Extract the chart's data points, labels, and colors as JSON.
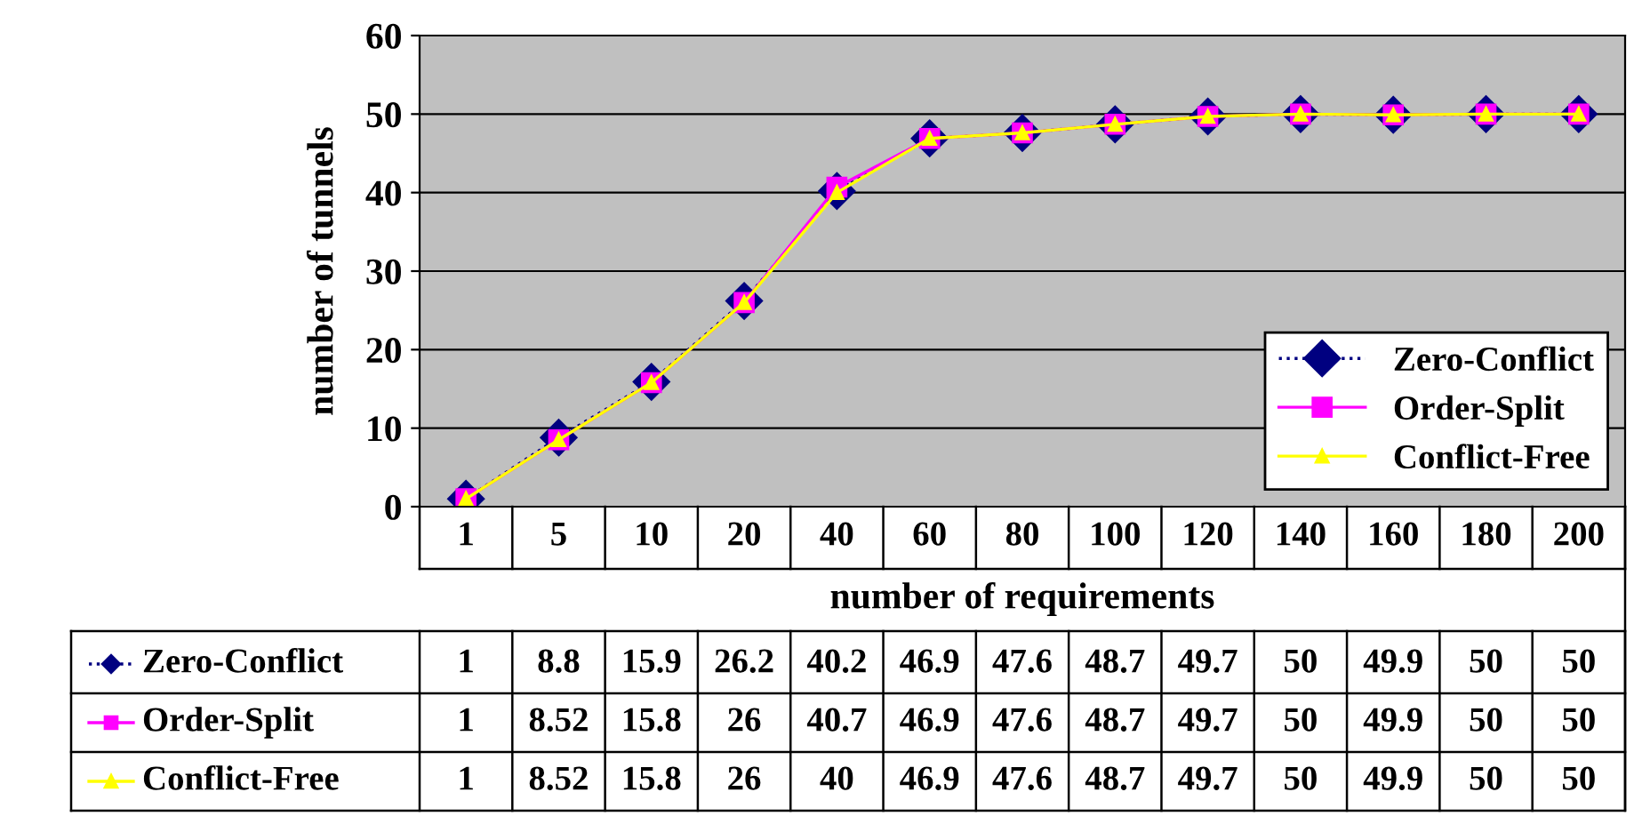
{
  "chart_data": {
    "type": "line",
    "xlabel": "number of requirements",
    "ylabel": "number of tunnels",
    "categories": [
      "1",
      "5",
      "10",
      "20",
      "40",
      "60",
      "80",
      "100",
      "120",
      "140",
      "160",
      "180",
      "200"
    ],
    "series": [
      {
        "name": "Zero-Conflict",
        "color": "#000080",
        "marker": "diamond",
        "line_style": "dotted",
        "values": [
          1,
          8.8,
          15.9,
          26.2,
          40.2,
          46.9,
          47.6,
          48.7,
          49.7,
          50,
          49.9,
          50,
          50
        ]
      },
      {
        "name": "Order-Split",
        "color": "#ff00ff",
        "marker": "square",
        "line_style": "solid",
        "values": [
          1,
          8.52,
          15.8,
          26,
          40.7,
          46.9,
          47.6,
          48.7,
          49.7,
          50,
          49.9,
          50,
          50
        ]
      },
      {
        "name": "Conflict-Free",
        "color": "#ffff00",
        "marker": "triangle",
        "line_style": "solid",
        "values": [
          1,
          8.52,
          15.8,
          26,
          40,
          46.9,
          47.6,
          48.7,
          49.7,
          50,
          49.9,
          50,
          50
        ]
      }
    ],
    "ylim": [
      0,
      60
    ],
    "yticks": [
      0,
      10,
      20,
      30,
      40,
      50,
      60
    ],
    "grid": "y",
    "legend": "bottom right",
    "data_labels": true
  }
}
